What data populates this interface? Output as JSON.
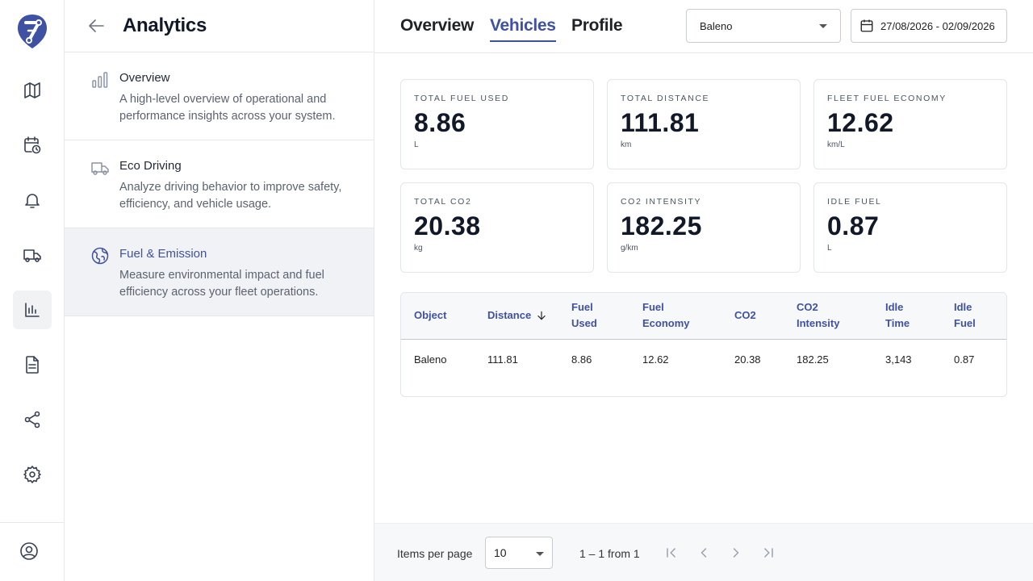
{
  "rail": {
    "logo_label": "7",
    "items": [
      {
        "name": "map-icon"
      },
      {
        "name": "calendar-clock-icon"
      },
      {
        "name": "bell-icon"
      },
      {
        "name": "truck-icon"
      },
      {
        "name": "bar-chart-icon",
        "active": true
      },
      {
        "name": "document-icon"
      },
      {
        "name": "share-icon"
      },
      {
        "name": "gear-icon"
      }
    ],
    "user_icon": "user-circle-icon"
  },
  "panel": {
    "title": "Analytics",
    "items": [
      {
        "title": "Overview",
        "description": "A high-level overview of operational and performance insights across your system.",
        "icon": "bar-chart-icon"
      },
      {
        "title": "Eco Driving",
        "description": "Analyze driving behavior to improve safety, efficiency, and vehicle usage.",
        "icon": "truck-icon"
      },
      {
        "title": "Fuel & Emission",
        "description": "Measure environmental impact and fuel efficiency across your fleet operations.",
        "icon": "globe-icon",
        "active": true
      }
    ]
  },
  "tabs": [
    {
      "label": "Overview"
    },
    {
      "label": "Vehicles",
      "active": true
    },
    {
      "label": "Profile"
    }
  ],
  "vehicle_select": {
    "value": "Baleno"
  },
  "date_range": {
    "value": "27/08/2026 - 02/09/2026"
  },
  "cards": [
    {
      "label": "TOTAL FUEL USED",
      "value": "8.86",
      "unit": "L"
    },
    {
      "label": "TOTAL DISTANCE",
      "value": "111.81",
      "unit": "km"
    },
    {
      "label": "FLEET FUEL ECONOMY",
      "value": "12.62",
      "unit": "km/L"
    },
    {
      "label": "TOTAL CO2",
      "value": "20.38",
      "unit": "kg"
    },
    {
      "label": "CO2 INTENSITY",
      "value": "182.25",
      "unit": "g/km"
    },
    {
      "label": "IDLE FUEL",
      "value": "0.87",
      "unit": "L"
    }
  ],
  "table": {
    "headers": [
      {
        "line1": "Object",
        "line2": ""
      },
      {
        "line1": "Distance",
        "line2": "",
        "sort": "descending"
      },
      {
        "line1": "Fuel",
        "line2": "Used"
      },
      {
        "line1": "Fuel",
        "line2": "Economy"
      },
      {
        "line1": "CO2",
        "line2": ""
      },
      {
        "line1": "CO2",
        "line2": "Intensity"
      },
      {
        "line1": "Idle",
        "line2": "Time"
      },
      {
        "line1": "Idle",
        "line2": "Fuel"
      }
    ],
    "rows": [
      [
        "Baleno",
        "111.81",
        "8.86",
        "12.62",
        "20.38",
        "182.25",
        "3,143",
        "0.87"
      ]
    ]
  },
  "pagination": {
    "items_per_page_label": "Items per page",
    "items_per_page": "10",
    "range_text": "1 – 1 from 1"
  },
  "colors": {
    "accent": "#3f51a3",
    "active_background": "#f1f2f5",
    "border": "#e5e7eb"
  }
}
